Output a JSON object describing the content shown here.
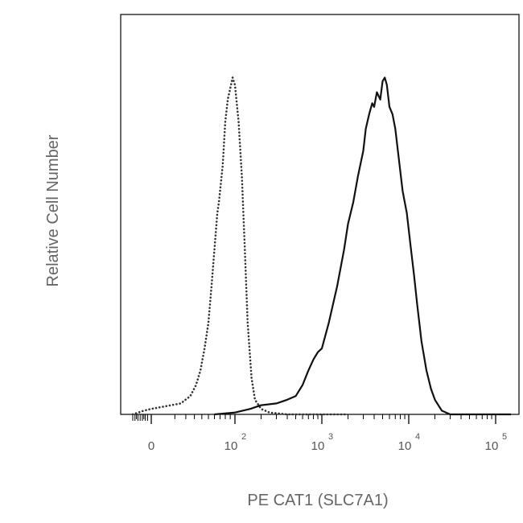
{
  "chart_data": {
    "type": "line",
    "title": "",
    "xlabel": "PE CAT1 (SLC7A1)",
    "ylabel": "Relative Cell Number",
    "x_scale": "biexponential",
    "xlim": [
      -30,
      150000
    ],
    "ylim": [
      0,
      100
    ],
    "grid": false,
    "legend": "none",
    "x_ticks": [
      {
        "value": 0,
        "base": "0",
        "exp": ""
      },
      {
        "value": 100,
        "base": "10",
        "exp": "2"
      },
      {
        "value": 1000,
        "base": "10",
        "exp": "3"
      },
      {
        "value": 10000,
        "base": "10",
        "exp": "4"
      },
      {
        "value": 100000,
        "base": "10",
        "exp": "5"
      }
    ],
    "series": [
      {
        "style": "dotted",
        "color": "#333333",
        "points": [
          [
            -25,
            0
          ],
          [
            -10,
            1
          ],
          [
            0,
            1.5
          ],
          [
            15,
            3
          ],
          [
            25,
            5
          ],
          [
            32,
            8
          ],
          [
            38,
            12
          ],
          [
            44,
            18
          ],
          [
            50,
            25
          ],
          [
            55,
            35
          ],
          [
            60,
            45
          ],
          [
            65,
            55
          ],
          [
            68,
            58
          ],
          [
            75,
            68
          ],
          [
            80,
            80
          ],
          [
            85,
            86
          ],
          [
            90,
            89
          ],
          [
            95,
            92
          ],
          [
            100,
            90
          ],
          [
            110,
            80
          ],
          [
            120,
            65
          ],
          [
            130,
            45
          ],
          [
            140,
            25
          ],
          [
            155,
            10
          ],
          [
            170,
            4
          ],
          [
            200,
            1.5
          ],
          [
            250,
            0.5
          ],
          [
            400,
            0
          ],
          [
            2000,
            0
          ]
        ]
      },
      {
        "style": "solid",
        "color": "#111111",
        "points": [
          [
            60,
            0
          ],
          [
            100,
            0.5
          ],
          [
            150,
            1.5
          ],
          [
            200,
            2.5
          ],
          [
            300,
            3
          ],
          [
            400,
            4
          ],
          [
            500,
            5
          ],
          [
            600,
            8
          ],
          [
            700,
            12
          ],
          [
            800,
            15
          ],
          [
            900,
            17
          ],
          [
            1000,
            18
          ],
          [
            1200,
            25
          ],
          [
            1500,
            35
          ],
          [
            1800,
            45
          ],
          [
            2000,
            52
          ],
          [
            2300,
            58
          ],
          [
            2600,
            65
          ],
          [
            3000,
            72
          ],
          [
            3200,
            78
          ],
          [
            3500,
            82
          ],
          [
            3800,
            85
          ],
          [
            4000,
            84
          ],
          [
            4300,
            88
          ],
          [
            4700,
            86
          ],
          [
            5000,
            91
          ],
          [
            5300,
            92
          ],
          [
            5600,
            90
          ],
          [
            6000,
            84
          ],
          [
            6500,
            82
          ],
          [
            7000,
            78
          ],
          [
            7500,
            72
          ],
          [
            8500,
            61
          ],
          [
            9500,
            55
          ],
          [
            10500,
            46
          ],
          [
            11500,
            38
          ],
          [
            12500,
            30
          ],
          [
            14000,
            20
          ],
          [
            16000,
            12
          ],
          [
            18000,
            7
          ],
          [
            20000,
            4
          ],
          [
            24000,
            1
          ],
          [
            30000,
            0
          ],
          [
            150000,
            0
          ]
        ]
      }
    ]
  }
}
